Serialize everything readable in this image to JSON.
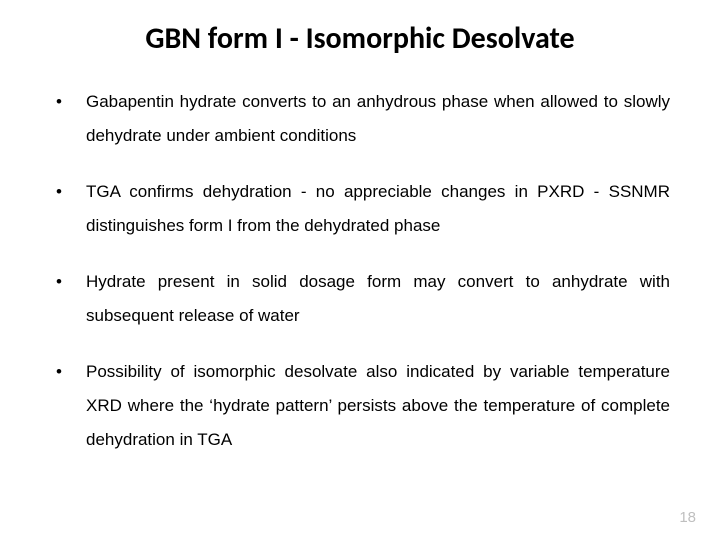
{
  "title": "GBN form I - Isomorphic Desolvate",
  "bullets": [
    "Gabapentin hydrate converts to an anhydrous phase when allowed to slowly dehydrate under ambient conditions",
    "TGA confirms dehydration - no appreciable changes in PXRD - SSNMR distinguishes form I from the dehydrated phase",
    "Hydrate present in solid dosage form may convert to anhydrate with subsequent release of water",
    "Possibility of isomorphic desolvate also indicated by variable temperature XRD where the ‘hydrate pattern’ persists above the temperature of complete dehydration in TGA"
  ],
  "page_number": "18",
  "colors": {
    "background": "#ffffff",
    "text": "#000000",
    "page_number": "#bfbfbf"
  },
  "typography": {
    "title_font": "Calibri",
    "title_size_pt": 30,
    "title_weight": 700,
    "body_font": "Arial",
    "body_size_pt": 17,
    "body_line_height": 2.0,
    "body_align": "justify"
  }
}
